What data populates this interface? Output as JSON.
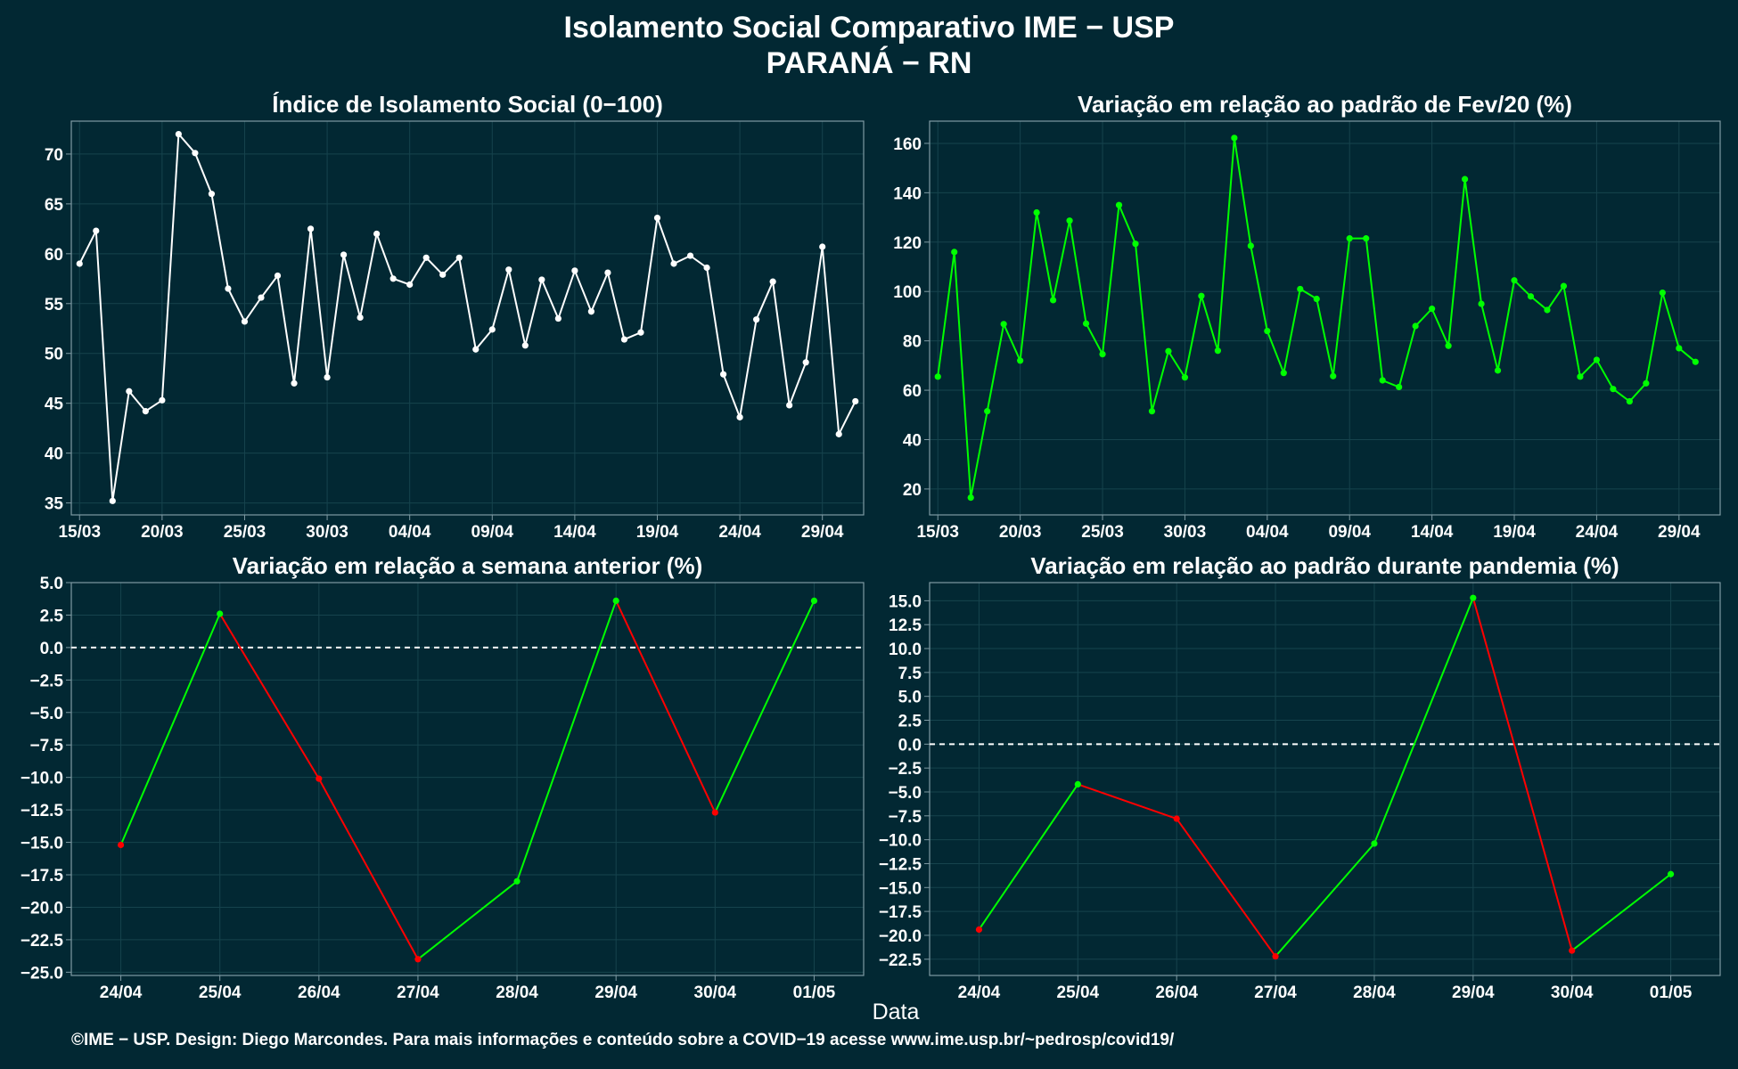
{
  "header": {
    "title_line1": "Isolamento Social Comparativo IME − USP",
    "title_line2": "PARANÁ − RN"
  },
  "footer": {
    "credit": "©IME − USP. Design: Diego Marcondes. Para mais informações e conteúdo sobre a COVID−19 acesse www.ime.usp.br/~pedrosp/covid19/"
  },
  "x_axis_title": "Data",
  "colors": {
    "background": "#022833",
    "panel_border": "#7f9aa3",
    "grid": "#16434d",
    "text": "#ffffff",
    "series_index": "#ffffff",
    "series_feb": "#00ff00",
    "increase": "#00ff00",
    "decrease": "#ff0000",
    "zero_line": "#ffffff"
  },
  "chart_data": [
    {
      "id": "indice",
      "type": "line",
      "title": "Índice de Isolamento Social (0−100)",
      "xlabel": "",
      "ylabel": "",
      "x_tick_labels": [
        "15/03",
        "20/03",
        "25/03",
        "30/03",
        "04/04",
        "09/04",
        "14/04",
        "19/04",
        "24/04",
        "29/04"
      ],
      "x_tick_positions": [
        0,
        5,
        10,
        15,
        20,
        25,
        30,
        35,
        40,
        45
      ],
      "y_ticks": [
        35,
        40,
        45,
        50,
        55,
        60,
        65,
        70
      ],
      "ylim": [
        33.8,
        73.3
      ],
      "xlim": [
        -0.5,
        47.5
      ],
      "x_start": "15/03",
      "values": [
        59.0,
        62.3,
        35.2,
        46.2,
        44.2,
        45.3,
        72.0,
        70.1,
        66.0,
        56.5,
        53.2,
        55.6,
        57.8,
        47.0,
        62.5,
        47.6,
        59.9,
        53.6,
        62.0,
        57.5,
        56.9,
        59.6,
        57.9,
        59.6,
        50.4,
        52.4,
        58.4,
        50.8,
        57.4,
        53.5,
        58.3,
        54.2,
        58.1,
        51.4,
        52.1,
        63.6,
        59.0,
        59.8,
        58.6,
        47.9,
        43.6,
        53.4,
        57.2,
        44.8,
        49.1,
        60.7,
        41.9,
        45.2
      ],
      "grid": true,
      "legend": "none"
    },
    {
      "id": "fev20",
      "type": "line",
      "title": "Variação em relação ao padrão de Fev/20 (%)",
      "xlabel": "",
      "ylabel": "",
      "x_tick_labels": [
        "15/03",
        "20/03",
        "25/03",
        "30/03",
        "04/04",
        "09/04",
        "14/04",
        "19/04",
        "24/04",
        "29/04"
      ],
      "x_tick_positions": [
        0,
        5,
        10,
        15,
        20,
        25,
        30,
        35,
        40,
        45
      ],
      "y_ticks": [
        20,
        40,
        60,
        80,
        100,
        120,
        140,
        160
      ],
      "ylim": [
        9.5,
        169.0
      ],
      "xlim": [
        -0.5,
        47.5
      ],
      "x_start": "15/03",
      "values": [
        65.5,
        116.0,
        16.5,
        51.5,
        86.8,
        72.0,
        132.0,
        96.5,
        128.7,
        87.0,
        74.6,
        135.0,
        119.3,
        51.5,
        75.8,
        65.2,
        98.2,
        76.0,
        162.2,
        118.5,
        84.0,
        67.0,
        101.0,
        97.0,
        65.7,
        121.5,
        121.5,
        64.0,
        61.3,
        86.0,
        93.0,
        78.0,
        145.5,
        95.0,
        68.0,
        104.5,
        98.0,
        92.5,
        102.2,
        65.5,
        72.3,
        60.5,
        55.5,
        62.8,
        99.5,
        77.0,
        71.5
      ],
      "grid": true,
      "legend": "none"
    },
    {
      "id": "semana",
      "type": "line",
      "title": "Variação em relação a semana anterior (%)",
      "xlabel": "",
      "ylabel": "",
      "categories": [
        "24/04",
        "25/04",
        "26/04",
        "27/04",
        "28/04",
        "29/04",
        "30/04",
        "01/05"
      ],
      "values": [
        -15.2,
        2.6,
        -10.1,
        -24.0,
        -18.0,
        3.6,
        -12.7,
        3.6
      ],
      "y_ticks": [
        5.0,
        2.5,
        0.0,
        -2.5,
        -5.0,
        -7.5,
        -10.0,
        -12.5,
        -15.0,
        -17.5,
        -20.0,
        -22.5,
        -25.0
      ],
      "y_tick_labels": [
        "5.0",
        "2.5",
        "0.0",
        "−2.5",
        "−5.0",
        "−7.5",
        "−10.0",
        "−12.5",
        "−15.0",
        "−17.5",
        "−20.0",
        "−22.5",
        "−25.0"
      ],
      "ylim": [
        -25.25,
        5.0
      ],
      "zero_line": true,
      "grid": true,
      "legend": "none"
    },
    {
      "id": "pandemia",
      "type": "line",
      "title": "Variação em relação ao padrão durante pandemia (%)",
      "xlabel": "",
      "ylabel": "",
      "categories": [
        "24/04",
        "25/04",
        "26/04",
        "27/04",
        "28/04",
        "29/04",
        "30/04",
        "01/05"
      ],
      "values": [
        -19.4,
        -4.2,
        -7.8,
        -22.2,
        -10.4,
        15.3,
        -21.6,
        -13.6
      ],
      "y_ticks": [
        15.0,
        12.5,
        10.0,
        7.5,
        5.0,
        2.5,
        0.0,
        -2.5,
        -5.0,
        -7.5,
        -10.0,
        -12.5,
        -15.0,
        -17.5,
        -20.0,
        -22.5
      ],
      "y_tick_labels": [
        "15.0",
        "12.5",
        "10.0",
        "7.5",
        "5.0",
        "2.5",
        "0.0",
        "−2.5",
        "−5.0",
        "−7.5",
        "−10.0",
        "−12.5",
        "−15.0",
        "−17.5",
        "−20.0",
        "−22.5"
      ],
      "ylim": [
        -24.2,
        16.9
      ],
      "zero_line": true,
      "grid": true,
      "legend": "none"
    }
  ]
}
